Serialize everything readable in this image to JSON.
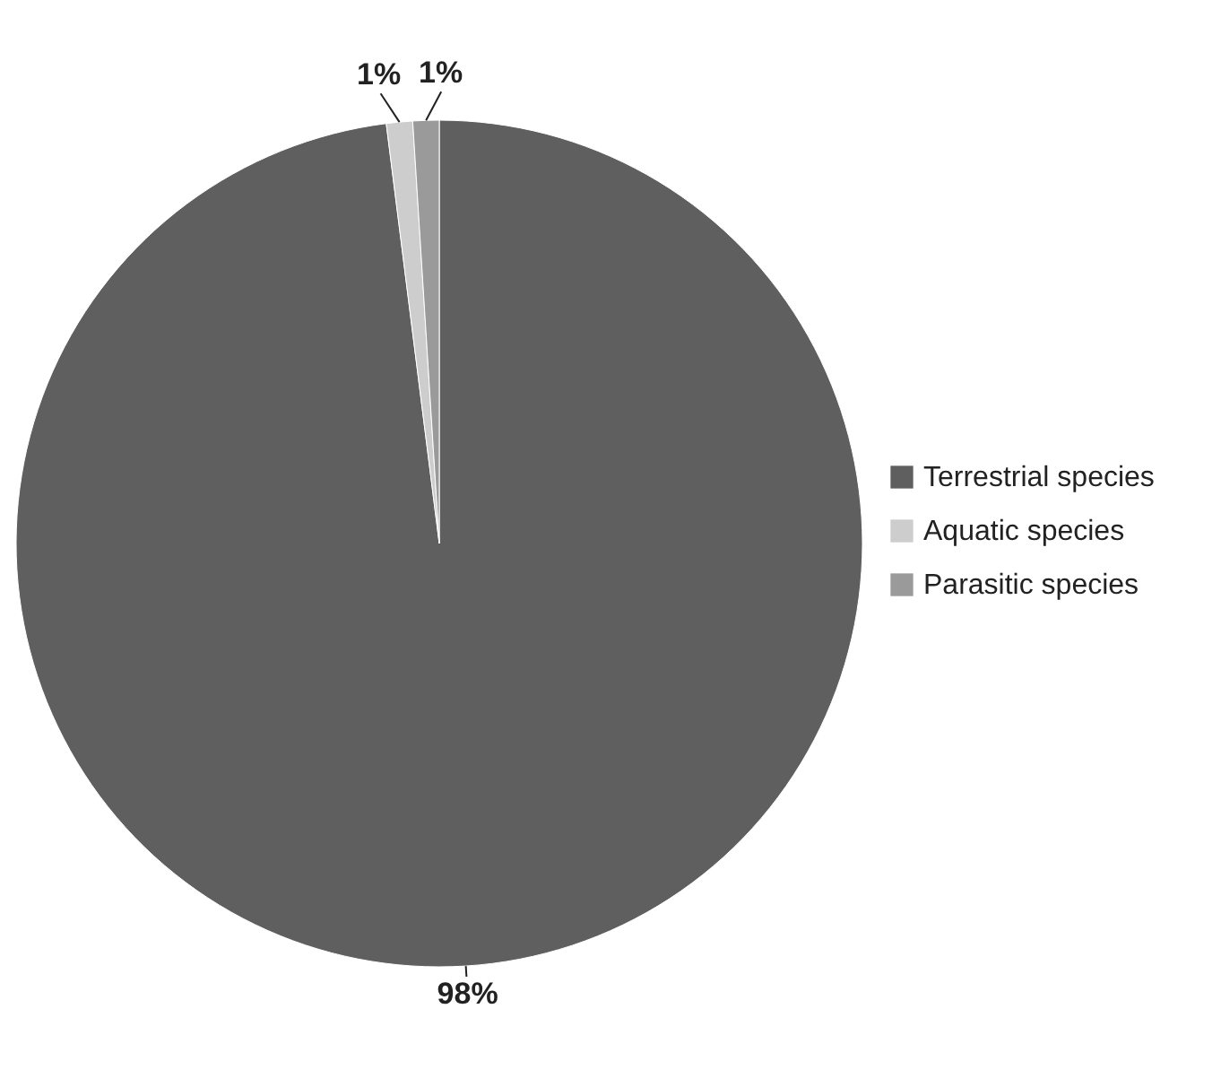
{
  "chart_data": {
    "type": "pie",
    "categories": [
      "Terrestrial species",
      "Aquatic species",
      "Parasitic species"
    ],
    "values": [
      98,
      1,
      1
    ],
    "colors": [
      "#5f5f5f",
      "#cdcdcd",
      "#9a9a9a"
    ],
    "value_labels": [
      "98%",
      "1%",
      "1%"
    ],
    "legend": "right"
  }
}
